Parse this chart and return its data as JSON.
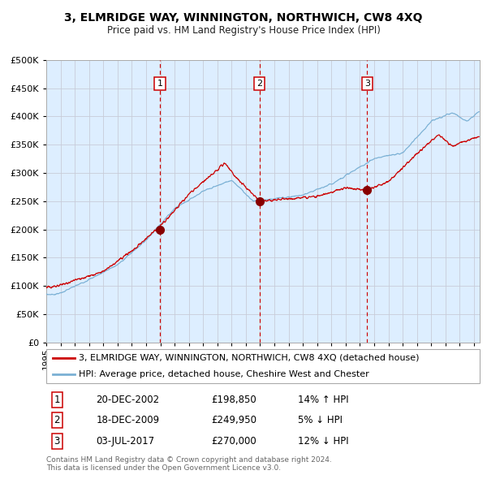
{
  "title": "3, ELMRIDGE WAY, WINNINGTON, NORTHWICH, CW8 4XQ",
  "subtitle": "Price paid vs. HM Land Registry's House Price Index (HPI)",
  "legend_line1": "3, ELMRIDGE WAY, WINNINGTON, NORTHWICH, CW8 4XQ (detached house)",
  "legend_line2": "HPI: Average price, detached house, Cheshire West and Chester",
  "footer1": "Contains HM Land Registry data © Crown copyright and database right 2024.",
  "footer2": "This data is licensed under the Open Government Licence v3.0.",
  "transactions": [
    {
      "num": 1,
      "date": "20-DEC-2002",
      "price": "£198,850",
      "pct": "14% ↑ HPI",
      "x_year": 2002.97,
      "y_price": 198850
    },
    {
      "num": 2,
      "date": "18-DEC-2009",
      "price": "£249,950",
      "pct": "5% ↓ HPI",
      "x_year": 2009.96,
      "y_price": 249950
    },
    {
      "num": 3,
      "date": "03-JUL-2017",
      "price": "£270,000",
      "pct": "12% ↓ HPI",
      "x_year": 2017.5,
      "y_price": 270000
    }
  ],
  "red_line_color": "#cc0000",
  "blue_line_color": "#7ab0d4",
  "bg_color": "#ddeeff",
  "grid_color": "#c8ccd8",
  "vline_color": "#cc0000",
  "marker_color": "#880000",
  "ylim": [
    0,
    500000
  ],
  "yticks": [
    0,
    50000,
    100000,
    150000,
    200000,
    250000,
    300000,
    350000,
    400000,
    450000,
    500000
  ],
  "xlim_start": 1995.0,
  "xlim_end": 2025.4
}
